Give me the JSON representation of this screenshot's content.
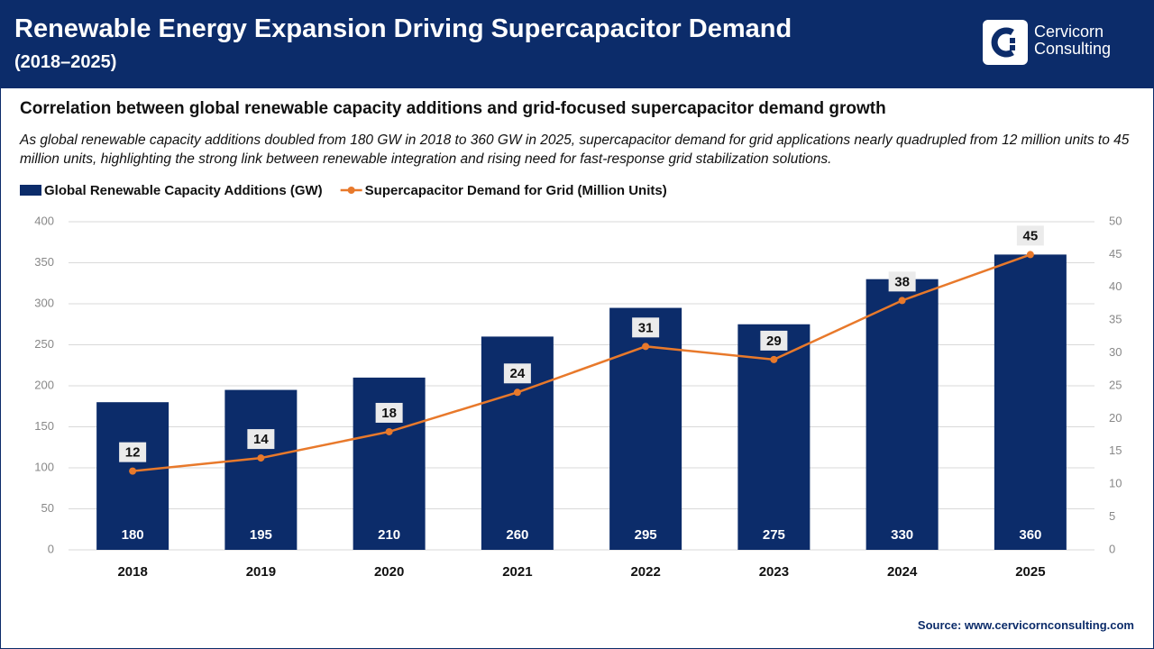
{
  "header": {
    "title": "Renewable Energy Expansion Driving Supercapacitor Demand",
    "subtitle": "(2018–2025)",
    "brand": [
      "Cervicorn",
      "Consulting"
    ]
  },
  "chart_data": {
    "type": "bar",
    "title": "Correlation between global renewable capacity additions and grid-focused supercapacitor demand growth",
    "description": "As global renewable capacity additions doubled from 180 GW in 2018 to 360 GW in 2025, supercapacitor demand for grid applications nearly quadrupled from 12 million units to 45 million units, highlighting the strong link between renewable integration and rising need for fast-response grid stabilization solutions.",
    "categories": [
      "2018",
      "2019",
      "2020",
      "2021",
      "2022",
      "2023",
      "2024",
      "2025"
    ],
    "series": [
      {
        "name": "Global Renewable Capacity Additions (GW)",
        "type": "bar",
        "color": "#0c2c6a",
        "values": [
          180,
          195,
          210,
          260,
          295,
          275,
          330,
          360
        ]
      },
      {
        "name": "Supercapacitor Demand for Grid (Million Units)",
        "type": "line",
        "axis": "y2",
        "color": "#e8792b",
        "values": [
          12,
          14,
          18,
          24,
          31,
          29,
          38,
          45
        ]
      }
    ],
    "ylim": [
      0,
      400
    ],
    "yticks": [
      0,
      50,
      100,
      150,
      200,
      250,
      300,
      350,
      400
    ],
    "y2lim": [
      0,
      50
    ],
    "y2ticks": [
      0,
      5,
      10,
      15,
      20,
      25,
      30,
      35,
      40,
      45,
      50
    ],
    "grid": true
  },
  "source": "Source: www.cervicornconsulting.com"
}
